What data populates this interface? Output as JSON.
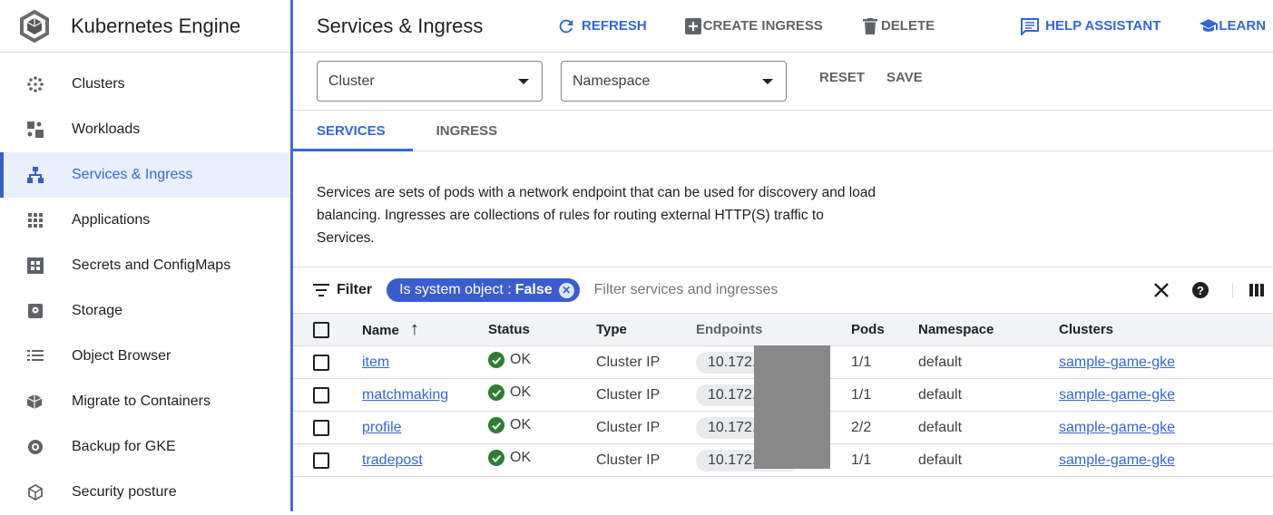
{
  "app": {
    "title": "Kubernetes Engine"
  },
  "sidebar": {
    "items": [
      {
        "label": "Clusters",
        "icon": "clusters-icon"
      },
      {
        "label": "Workloads",
        "icon": "workloads-icon"
      },
      {
        "label": "Services & Ingress",
        "icon": "services-icon",
        "active": true
      },
      {
        "label": "Applications",
        "icon": "applications-icon"
      },
      {
        "label": "Secrets and ConfigMaps",
        "icon": "secrets-icon"
      },
      {
        "label": "Storage",
        "icon": "storage-icon"
      },
      {
        "label": "Object Browser",
        "icon": "object-browser-icon"
      },
      {
        "label": "Migrate to Containers",
        "icon": "migrate-icon"
      },
      {
        "label": "Backup for GKE",
        "icon": "backup-icon"
      },
      {
        "label": "Security posture",
        "icon": "security-icon"
      }
    ]
  },
  "header": {
    "title": "Services & Ingress",
    "refresh": "REFRESH",
    "create": "CREATE INGRESS",
    "delete": "DELETE",
    "help": "HELP ASSISTANT",
    "learn": "LEARN"
  },
  "filters": {
    "cluster": "Cluster",
    "namespace": "Namespace",
    "reset": "RESET",
    "save": "SAVE"
  },
  "tabs": [
    {
      "label": "SERVICES",
      "active": true
    },
    {
      "label": "INGRESS"
    }
  ],
  "description": "Services are sets of pods with a network endpoint that can be used for discovery and load balancing. Ingresses are collections of rules for routing external HTTP(S) traffic to Services.",
  "filterbar": {
    "label": "Filter",
    "chip_key": "Is system object :",
    "chip_value": "False",
    "placeholder": "Filter services and ingresses"
  },
  "table": {
    "columns": [
      "Name",
      "Status",
      "Type",
      "Endpoints",
      "Pods",
      "Namespace",
      "Clusters"
    ],
    "sort": "Name ascending",
    "rows": [
      {
        "name": "item",
        "status": "OK",
        "type": "Cluster IP",
        "endpoint": "10.172.",
        "pods": "1/1",
        "namespace": "default",
        "cluster": "sample-game-gke"
      },
      {
        "name": "matchmaking",
        "status": "OK",
        "type": "Cluster IP",
        "endpoint": "10.172.",
        "pods": "1/1",
        "namespace": "default",
        "cluster": "sample-game-gke"
      },
      {
        "name": "profile",
        "status": "OK",
        "type": "Cluster IP",
        "endpoint": "10.172.",
        "pods": "2/2",
        "namespace": "default",
        "cluster": "sample-game-gke"
      },
      {
        "name": "tradepost",
        "status": "OK",
        "type": "Cluster IP",
        "endpoint": "10.172.",
        "pods": "1/1",
        "namespace": "default",
        "cluster": "sample-game-gke"
      }
    ]
  },
  "colors": {
    "accent": "#3367d6",
    "ok": "#34a853"
  }
}
